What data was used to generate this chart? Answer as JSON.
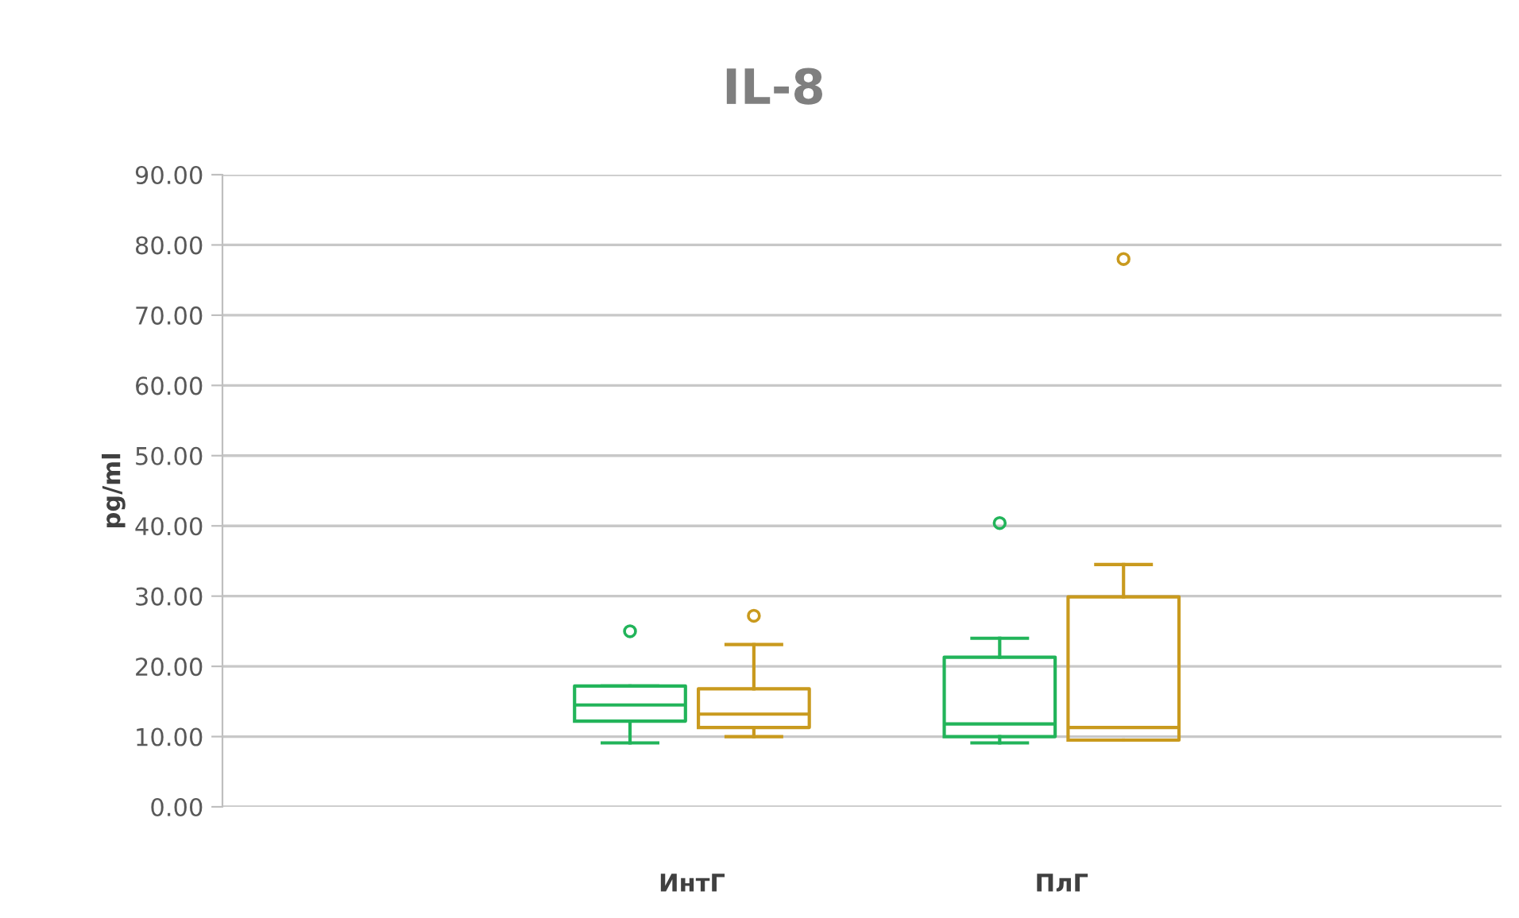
{
  "chart_data": {
    "type": "box",
    "title": "IL-8",
    "ylabel": "pg/ml",
    "categories": [
      "ИнтГ",
      "ПлГ"
    ],
    "series": [
      {
        "color": "#22b45a",
        "boxes": [
          {
            "low": 9.1,
            "q1": 12.2,
            "median": 14.5,
            "q3": 17.2,
            "high": 17.2,
            "outliers": [
              25.0
            ]
          },
          {
            "low": 9.1,
            "q1": 10.0,
            "median": 11.8,
            "q3": 21.3,
            "high": 24.0,
            "outliers": [
              40.4
            ]
          }
        ]
      },
      {
        "color": "#c99a1e",
        "boxes": [
          {
            "low": 10.0,
            "q1": 11.3,
            "median": 13.2,
            "q3": 16.8,
            "high": 23.1,
            "outliers": [
              27.2
            ]
          },
          {
            "low": 9.5,
            "q1": 9.5,
            "median": 11.3,
            "q3": 29.9,
            "high": 34.5,
            "outliers": [
              78.0
            ]
          }
        ]
      }
    ],
    "ylim": [
      0,
      90
    ],
    "yticks": [
      {
        "value": 0,
        "label": "0.00"
      },
      {
        "value": 10,
        "label": "10.00"
      },
      {
        "value": 20,
        "label": "20.00"
      },
      {
        "value": 30,
        "label": "30.00"
      },
      {
        "value": 40,
        "label": "40.00"
      },
      {
        "value": 50,
        "label": "50.00"
      },
      {
        "value": 60,
        "label": "60.00"
      },
      {
        "value": 70,
        "label": "70.00"
      },
      {
        "value": 80,
        "label": "80.00"
      },
      {
        "value": 90,
        "label": "90.00"
      }
    ],
    "grid": "y",
    "legend": false
  }
}
